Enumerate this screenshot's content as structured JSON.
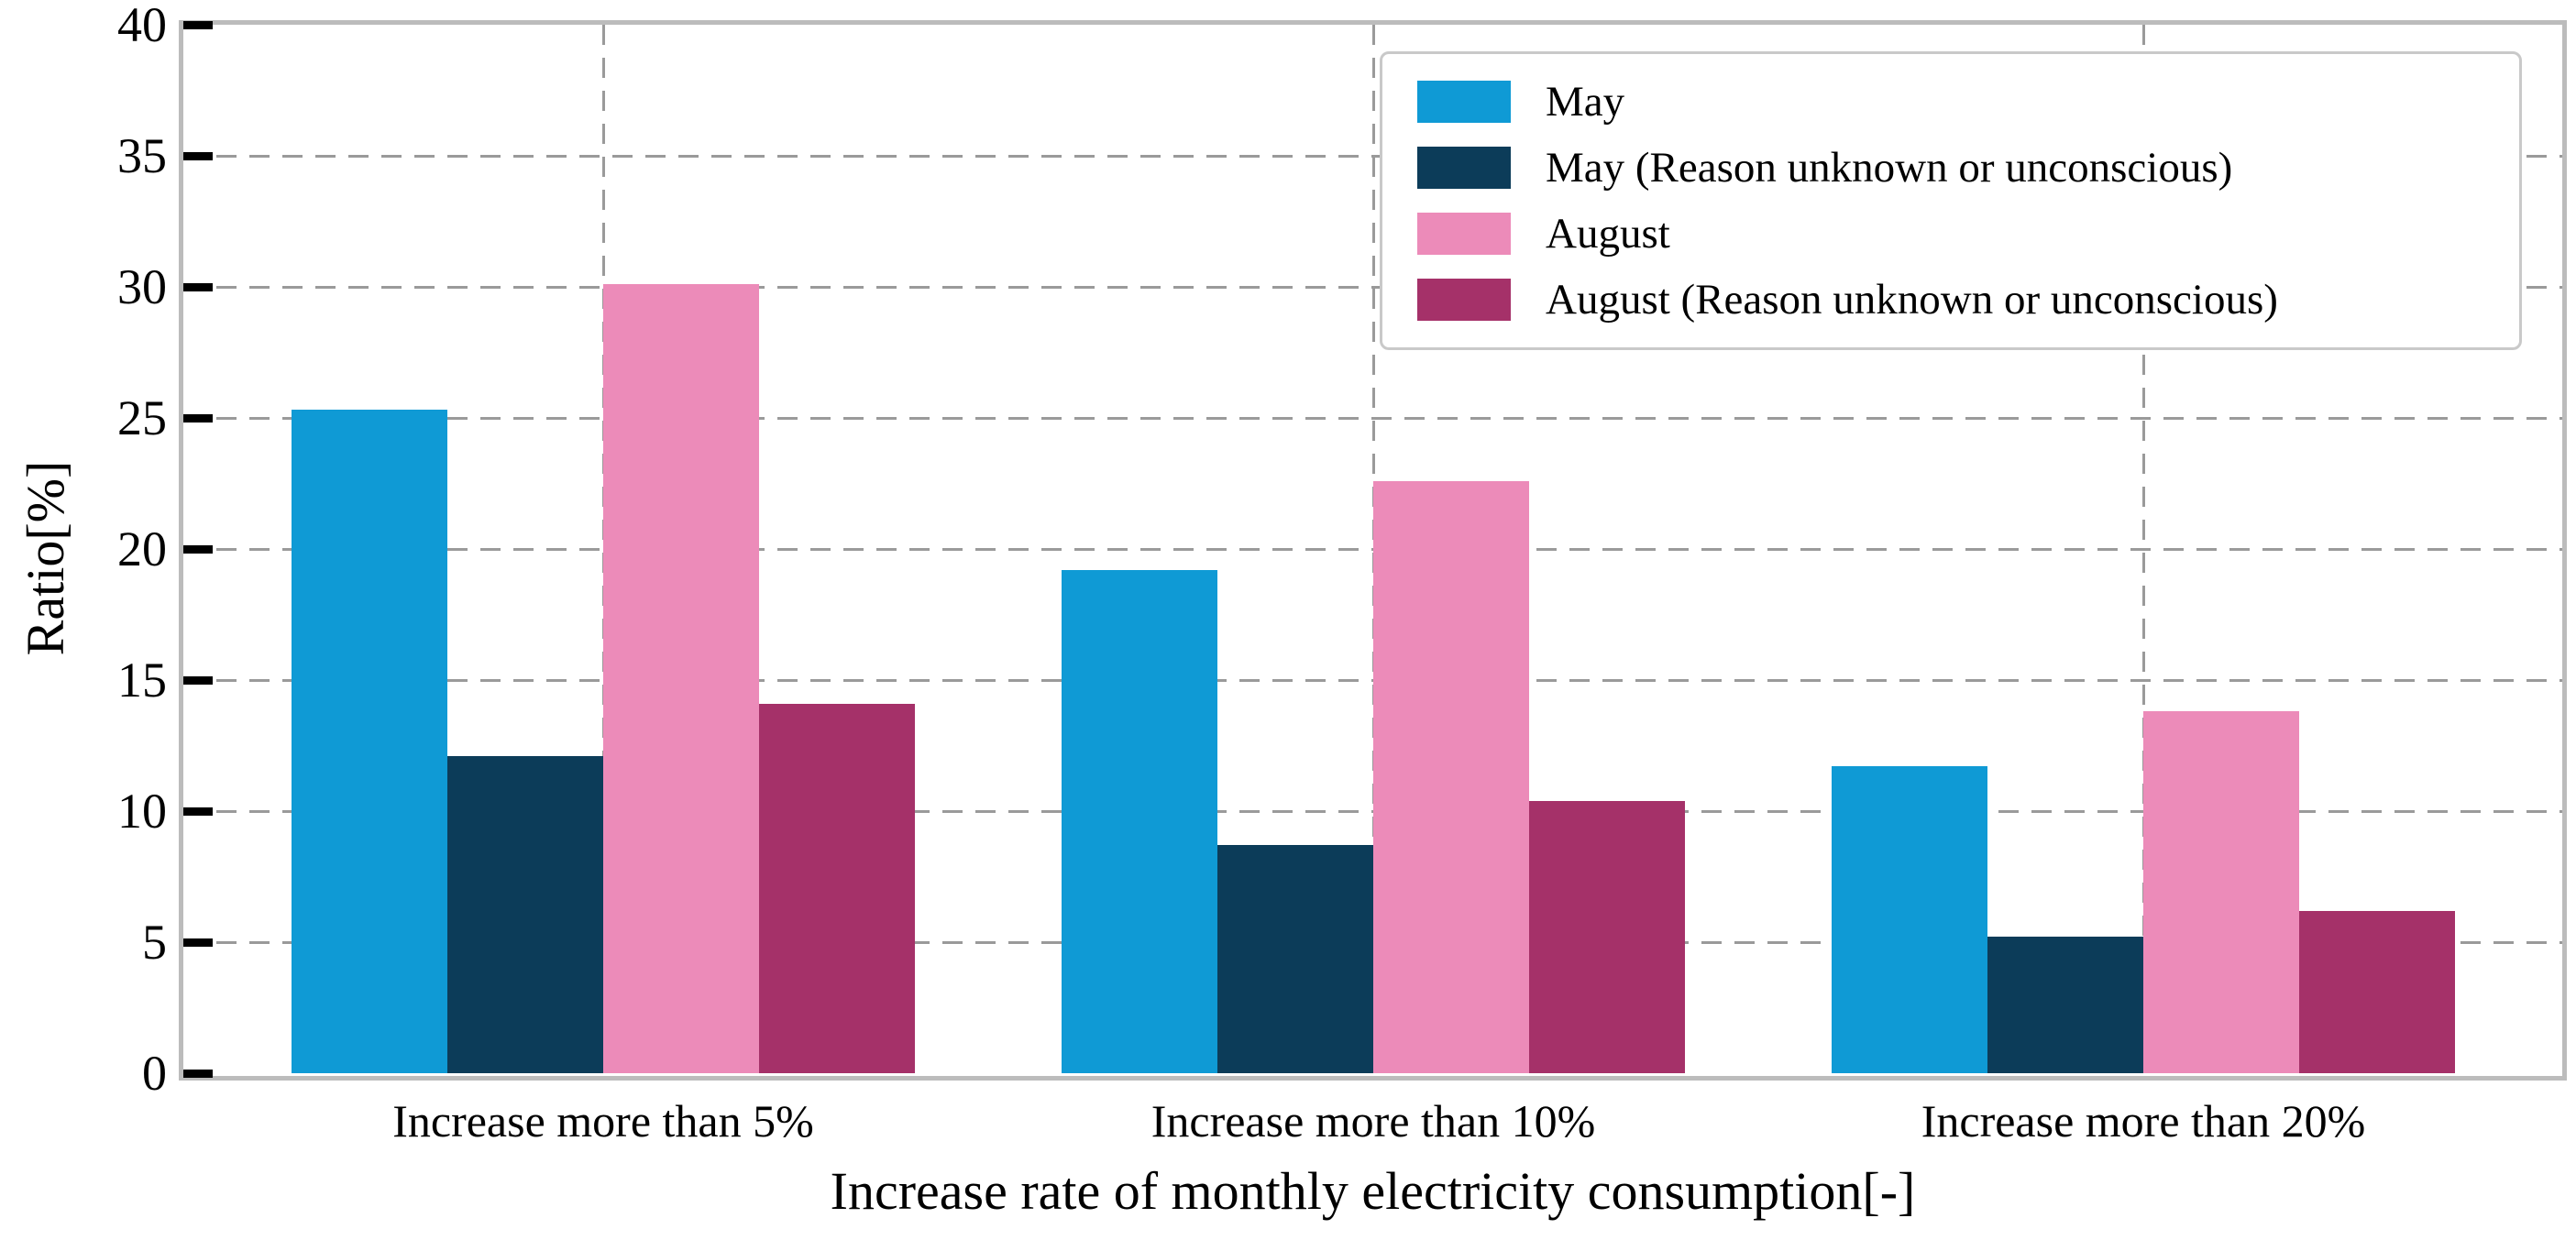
{
  "chart_data": {
    "type": "bar",
    "title": "",
    "categories": [
      "Increase more than 5%",
      "Increase more than 10%",
      "Increase more than 20%"
    ],
    "series": [
      {
        "name": "May",
        "color": "#0f9ad5",
        "values": [
          25.3,
          19.2,
          11.7
        ]
      },
      {
        "name": "May (Reason unknown or unconscious)",
        "color": "#0c3c59",
        "values": [
          12.1,
          8.7,
          5.2
        ]
      },
      {
        "name": "August",
        "color": "#ec8bb9",
        "values": [
          30.1,
          22.6,
          13.8
        ]
      },
      {
        "name": "August (Reason unknown or unconscious)",
        "color": "#a53169",
        "values": [
          14.1,
          10.4,
          6.2
        ]
      }
    ],
    "xlabel": "Increase rate of monthly electricity consumption[-]",
    "ylabel": "Ratio[%]",
    "ylim": [
      0,
      40
    ],
    "yticks": [
      0,
      5,
      10,
      15,
      20,
      25,
      30,
      35,
      40
    ],
    "grid": true,
    "grid_style": "dashed",
    "legend_position": "upper right"
  },
  "styles": {
    "grid_color": "#9a9a9a",
    "spine_color": "#bcbcbc",
    "tick_color": "#000000",
    "text_color": "#000000",
    "background": "#ffffff"
  }
}
